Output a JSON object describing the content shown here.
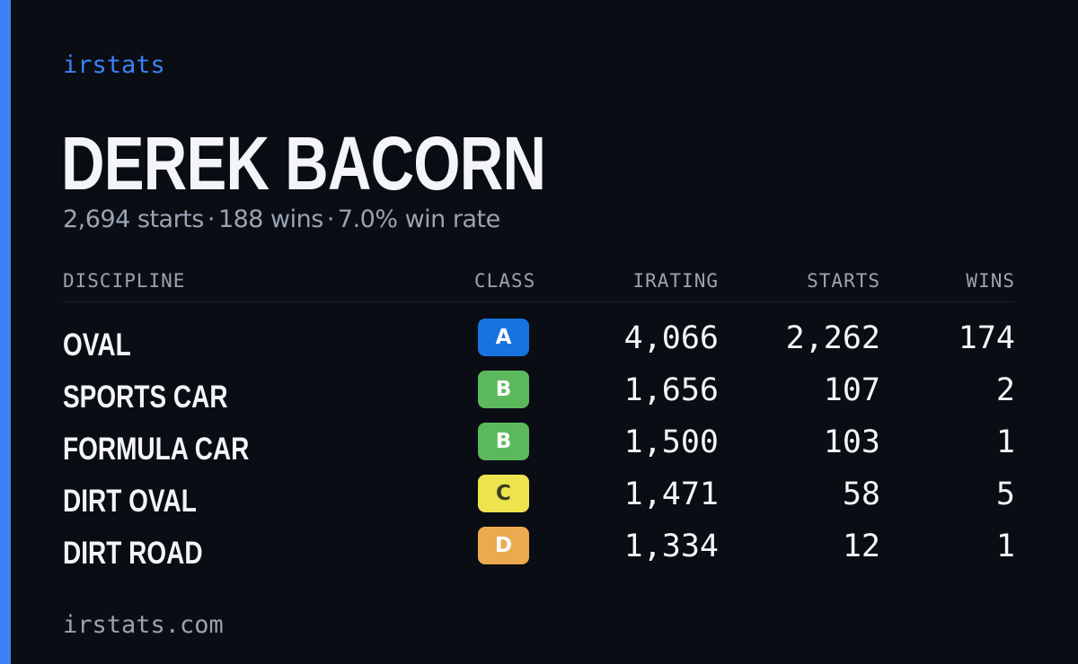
{
  "brand": "irstats",
  "driver_name": "DEREK BACORN",
  "summary": {
    "starts": "2,694 starts",
    "wins": "188 wins",
    "win_rate": "7.0% win rate",
    "separator": "·"
  },
  "colors": {
    "accent": "#3b82f6",
    "background": "#0a0d14",
    "text_primary": "#f3f5f9",
    "text_secondary": "#9aa3b2",
    "class_A": "#1673e0",
    "class_B": "#5cb85c",
    "class_C": "#ede44d",
    "class_D": "#ecaa4f"
  },
  "table": {
    "headers": {
      "discipline": "DISCIPLINE",
      "class": "CLASS",
      "irating": "IRATING",
      "starts": "STARTS",
      "wins": "WINS"
    },
    "rows": [
      {
        "discipline": "OVAL",
        "class": "A",
        "irating": "4,066",
        "starts": "2,262",
        "wins": "174"
      },
      {
        "discipline": "SPORTS CAR",
        "class": "B",
        "irating": "1,656",
        "starts": "107",
        "wins": "2"
      },
      {
        "discipline": "FORMULA CAR",
        "class": "B",
        "irating": "1,500",
        "starts": "103",
        "wins": "1"
      },
      {
        "discipline": "DIRT OVAL",
        "class": "C",
        "irating": "1,471",
        "starts": "58",
        "wins": "5"
      },
      {
        "discipline": "DIRT ROAD",
        "class": "D",
        "irating": "1,334",
        "starts": "12",
        "wins": "1"
      }
    ]
  },
  "footer": "irstats.com"
}
